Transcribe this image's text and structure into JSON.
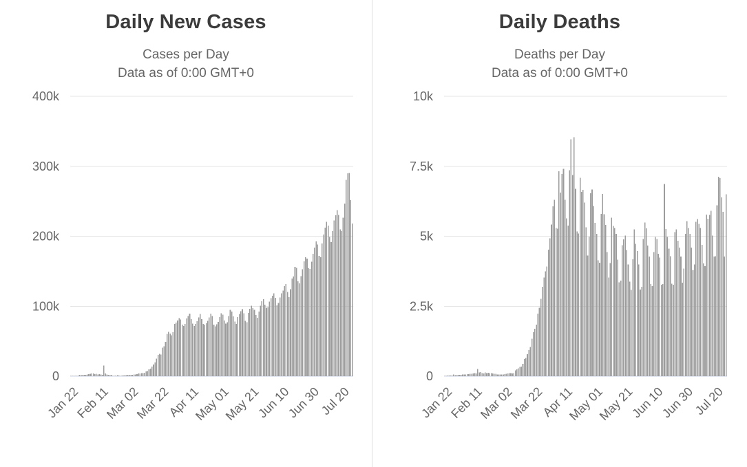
{
  "colors": {
    "title": "#3b3b3b",
    "subtitle": "#666666",
    "tick_label": "#666666",
    "gridline": "#e6e6e6",
    "axis_line": "#ccd6eb",
    "divider": "#dcdcdc",
    "background": "#ffffff"
  },
  "chart_data": [
    {
      "type": "bar",
      "title": "Daily New Cases",
      "subtitle": [
        "Cases per Day",
        "Data as of 0:00 GMT+0"
      ],
      "bar_color": "#9c9c9c",
      "ylim": [
        0,
        400000
      ],
      "grid": true,
      "yticks": [
        {
          "v": 0,
          "label": "0"
        },
        {
          "v": 100000,
          "label": "100k"
        },
        {
          "v": 200000,
          "label": "200k"
        },
        {
          "v": 300000,
          "label": "300k"
        },
        {
          "v": 400000,
          "label": "400k"
        }
      ],
      "xticks": [
        {
          "i": 0,
          "label": "Jan 22"
        },
        {
          "i": 20,
          "label": "Feb 11"
        },
        {
          "i": 40,
          "label": "Mar 02"
        },
        {
          "i": 60,
          "label": "Mar 22"
        },
        {
          "i": 80,
          "label": "Apr 11"
        },
        {
          "i": 100,
          "label": "May 01"
        },
        {
          "i": 120,
          "label": "May 21"
        },
        {
          "i": 140,
          "label": "Jun 10"
        },
        {
          "i": 160,
          "label": "Jun 30"
        },
        {
          "i": 180,
          "label": "Jul 20"
        }
      ],
      "values": [
        100,
        260,
        280,
        480,
        670,
        800,
        1750,
        1460,
        1740,
        1980,
        2100,
        2590,
        2830,
        3230,
        3890,
        3720,
        3160,
        3420,
        2620,
        2970,
        2560,
        2030,
        15150,
        4050,
        2560,
        2160,
        2000,
        1870,
        550,
        620,
        890,
        1360,
        1000,
        560,
        900,
        1100,
        1360,
        1480,
        1800,
        1760,
        2000,
        2120,
        2250,
        2390,
        2890,
        3890,
        3810,
        4250,
        4590,
        5060,
        6670,
        7500,
        9770,
        10950,
        13940,
        16570,
        19570,
        24890,
        30540,
        32120,
        31150,
        40560,
        42770,
        49220,
        60360,
        63460,
        61160,
        58460,
        63040,
        74730,
        76580,
        79740,
        82940,
        81180,
        73560,
        71840,
        74640,
        82670,
        86240,
        89660,
        81450,
        74970,
        71650,
        74940,
        78500,
        84080,
        88960,
        81380,
        74500,
        73650,
        75570,
        79180,
        84120,
        89460,
        85790,
        73480,
        71460,
        74230,
        77680,
        84440,
        90130,
        88100,
        79670,
        75300,
        77080,
        85860,
        94660,
        92350,
        85680,
        78230,
        74780,
        84400,
        89190,
        93070,
        95940,
        89980,
        79310,
        77160,
        90600,
        96370,
        100680,
        97180,
        94710,
        87640,
        83590,
        92350,
        100860,
        106940,
        110310,
        102300,
        97890,
        98540,
        106750,
        111370,
        114750,
        118670,
        112230,
        101420,
        104550,
        112680,
        118530,
        122540,
        128700,
        131460,
        120610,
        112880,
        124270,
        139480,
        142600,
        156470,
        154730,
        135430,
        132450,
        142820,
        152800,
        164130,
        170180,
        168080,
        154110,
        153360,
        163800,
        175070,
        183820,
        192390,
        188420,
        171830,
        169920,
        189610,
        202450,
        212270,
        220770,
        215180,
        198980,
        191490,
        207300,
        222720,
        229750,
        237170,
        230690,
        209610,
        207270,
        226780,
        246900,
        280580,
        289780,
        290540,
        251460,
        218210
      ]
    },
    {
      "type": "bar",
      "title": "Daily Deaths",
      "subtitle": [
        "Deaths per Day",
        "Data as of 0:00 GMT+0"
      ],
      "bar_color": "#9c9c9c",
      "ylim": [
        0,
        10000
      ],
      "grid": true,
      "yticks": [
        {
          "v": 0,
          "label": "0"
        },
        {
          "v": 2500,
          "label": "2.5k"
        },
        {
          "v": 5000,
          "label": "5k"
        },
        {
          "v": 7500,
          "label": "7.5k"
        },
        {
          "v": 10000,
          "label": "10k"
        }
      ],
      "xticks": [
        {
          "i": 0,
          "label": "Jan 22"
        },
        {
          "i": 20,
          "label": "Feb 11"
        },
        {
          "i": 40,
          "label": "Mar 02"
        },
        {
          "i": 60,
          "label": "Mar 22"
        },
        {
          "i": 80,
          "label": "Apr 11"
        },
        {
          "i": 100,
          "label": "May 01"
        },
        {
          "i": 120,
          "label": "May 21"
        },
        {
          "i": 140,
          "label": "Jun 10"
        },
        {
          "i": 160,
          "label": "Jun 30"
        },
        {
          "i": 180,
          "label": "Jul 20"
        }
      ],
      "values": [
        11,
        17,
        25,
        26,
        26,
        26,
        65,
        38,
        43,
        46,
        46,
        45,
        58,
        64,
        66,
        72,
        73,
        86,
        89,
        97,
        108,
        97,
        254,
        130,
        143,
        106,
        98,
        136,
        116,
        118,
        112,
        109,
        97,
        88,
        80,
        67,
        59,
        63,
        67,
        58,
        70,
        83,
        95,
        107,
        105,
        101,
        116,
        203,
        243,
        286,
        327,
        342,
        447,
        610,
        657,
        781,
        936,
        1042,
        1343,
        1576,
        1694,
        1843,
        2233,
        2441,
        2760,
        3191,
        3520,
        3748,
        3921,
        4527,
        4927,
        5414,
        6069,
        6306,
        5294,
        5266,
        7318,
        6565,
        7228,
        7412,
        6299,
        5633,
        5379,
        7358,
        8470,
        7190,
        8540,
        6690,
        5170,
        5100,
        7090,
        6580,
        6660,
        6210,
        5320,
        4310,
        4990,
        6540,
        6670,
        6080,
        5480,
        5080,
        4140,
        4050,
        5800,
        6510,
        5790,
        5400,
        4430,
        3530,
        4040,
        5660,
        5370,
        5300,
        5090,
        4160,
        3360,
        3410,
        4680,
        4890,
        5030,
        4510,
        3990,
        3380,
        3080,
        4180,
        5240,
        4730,
        4470,
        3990,
        3090,
        3200,
        4900,
        5490,
        5280,
        4670,
        4280,
        3290,
        3220,
        4440,
        4970,
        4900,
        4370,
        4240,
        3270,
        3290,
        6870,
        5260,
        4970,
        4560,
        4290,
        3310,
        3270,
        5150,
        5250,
        4840,
        4590,
        4280,
        3340,
        3840,
        5080,
        5540,
        5290,
        5090,
        4590,
        3800,
        3990,
        5520,
        5620,
        5440,
        5300,
        4690,
        4030,
        3930,
        5770,
        5630,
        5760,
        5910,
        5020,
        4270,
        4290,
        6100,
        7130,
        7080,
        6390,
        5870,
        4270,
        6500
      ]
    }
  ]
}
